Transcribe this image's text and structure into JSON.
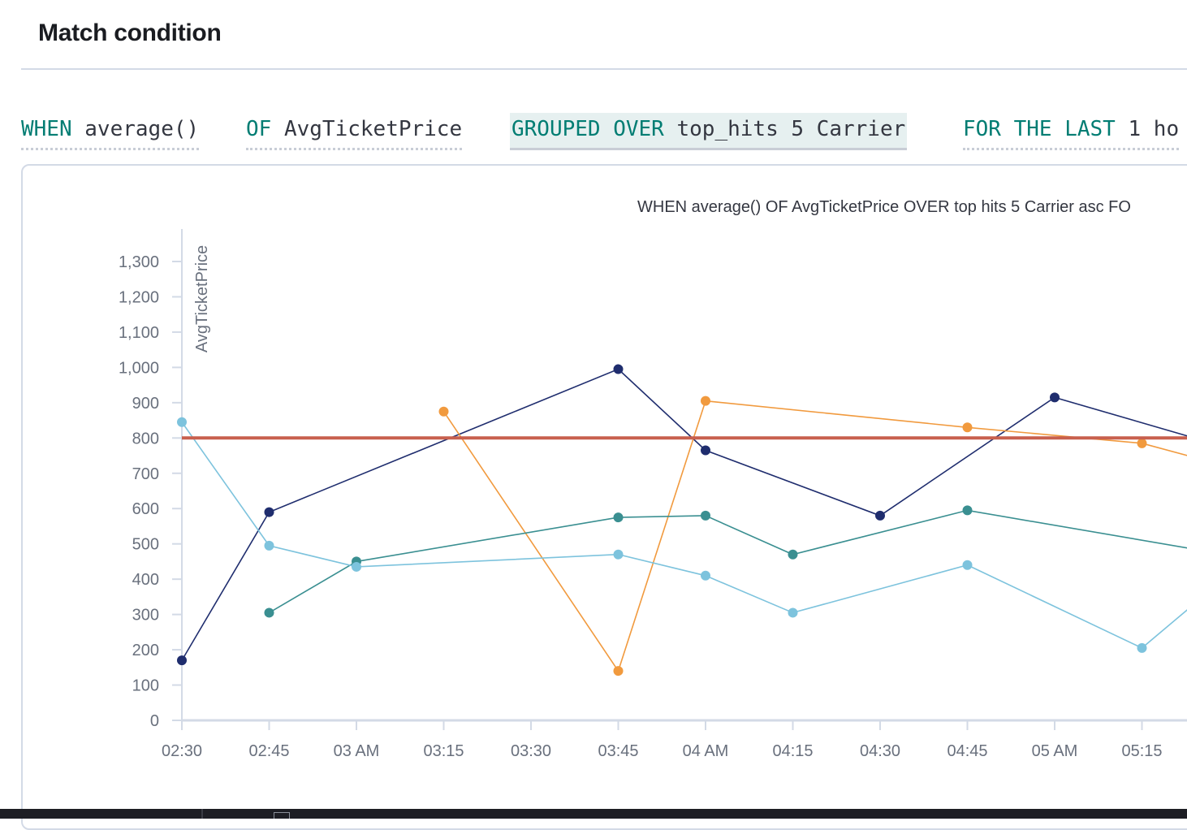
{
  "header": {
    "title": "Match condition"
  },
  "expressions": {
    "when": {
      "keyword": "WHEN",
      "value": "average()"
    },
    "of": {
      "keyword": "OF",
      "value": "AvgTicketPrice"
    },
    "grouped": {
      "keyword": "GROUPED OVER",
      "value": "top_hits 5 Carrier"
    },
    "for": {
      "keyword": "FOR THE LAST",
      "value": "1 ho"
    }
  },
  "chart_caption": "WHEN average() OF AvgTicketPrice OVER top hits 5 Carrier asc FO",
  "colors": {
    "navy": "#1f2d6e",
    "orange": "#f19a3e",
    "teal": "#3a8f91",
    "lightblue": "#7dc3dd",
    "threshold": "#c8604e"
  },
  "chart_data": {
    "type": "line",
    "ylabel": "AvgTicketPrice",
    "ylim": [
      0,
      1300
    ],
    "yticks": [
      "0",
      "100",
      "200",
      "300",
      "400",
      "500",
      "600",
      "700",
      "800",
      "900",
      "1,000",
      "1,100",
      "1,200",
      "1,300"
    ],
    "x_ticks": [
      "02:30",
      "02:45",
      "03 AM",
      "03:15",
      "03:30",
      "03:45",
      "04 AM",
      "04:15",
      "04:30",
      "04:45",
      "05 AM",
      "05:15"
    ],
    "threshold": 800,
    "series": [
      {
        "color": "navy",
        "points": [
          [
            0,
            170
          ],
          [
            1,
            590
          ],
          [
            5,
            995
          ],
          [
            6,
            765
          ],
          [
            8,
            580
          ],
          [
            10,
            915
          ],
          [
            11.6,
            800
          ]
        ]
      },
      {
        "color": "orange",
        "points": [
          [
            3,
            875
          ],
          [
            5,
            140
          ],
          [
            6,
            905
          ],
          [
            9,
            830
          ],
          [
            11,
            785
          ],
          [
            11.6,
            745
          ]
        ]
      },
      {
        "color": "teal",
        "points": [
          [
            1,
            305
          ],
          [
            2,
            450
          ],
          [
            5,
            575
          ],
          [
            6,
            580
          ],
          [
            7,
            470
          ],
          [
            9,
            595
          ],
          [
            11.6,
            485
          ]
        ]
      },
      {
        "color": "lightblue",
        "points": [
          [
            0,
            845
          ],
          [
            1,
            495
          ],
          [
            2,
            435
          ],
          [
            5,
            470
          ],
          [
            6,
            410
          ],
          [
            7,
            305
          ],
          [
            9,
            440
          ],
          [
            11,
            205
          ],
          [
            11.6,
            330
          ]
        ]
      }
    ]
  }
}
